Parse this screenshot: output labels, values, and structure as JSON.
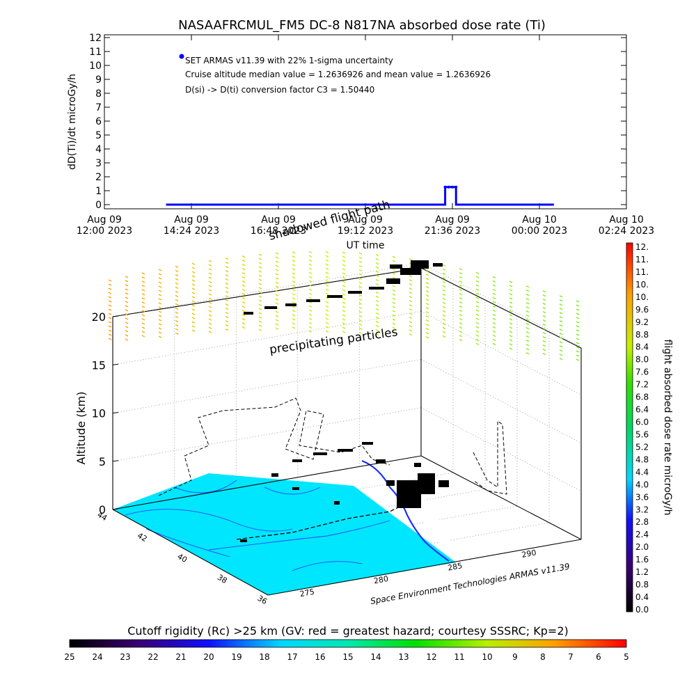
{
  "chart_data": [
    {
      "type": "line",
      "title": "NASAAFRCMUL_FM5 DC-8   N817NA absorbed dose rate (Ti)",
      "ylabel": "dD(Ti)/dt microGy/h",
      "xlabel": "UT time",
      "ylim": [
        0,
        12
      ],
      "yticks": [
        "0",
        "1",
        "2",
        "3",
        "4",
        "5",
        "6",
        "7",
        "8",
        "9",
        "10",
        "11",
        "12"
      ],
      "xticks": [
        {
          "line1": "Aug 09",
          "line2": "12:00 2023"
        },
        {
          "line1": "Aug 09",
          "line2": "14:24 2023"
        },
        {
          "line1": "Aug 09",
          "line2": "16:48 2023"
        },
        {
          "line1": "Aug 09",
          "line2": "19:12 2023"
        },
        {
          "line1": "Aug 09",
          "line2": "21:36 2023"
        },
        {
          "line1": "Aug 10",
          "line2": "00:00 2023"
        },
        {
          "line1": "Aug 10",
          "line2": "02:24 2023"
        }
      ],
      "xlim_hours": [
        0,
        14.4
      ],
      "series": [
        {
          "name": "SET ARMAS v11.39 with 22% 1-sigma uncertainty",
          "color": "#0000ff",
          "x_hours": [
            1.7,
            9.4,
            9.4,
            9.5,
            9.6,
            9.7,
            9.7,
            12.4
          ],
          "values": [
            0,
            0,
            1.26,
            1.26,
            1.26,
            1.26,
            0,
            0
          ]
        }
      ],
      "annotations": [
        "SET ARMAS v11.39 with 22% 1-sigma uncertainty",
        "Cruise altitude median value = 1.2636926 and mean value = 1.2636926",
        "D(si) -> D(ti) conversion factor C3 = 1.50440"
      ]
    },
    {
      "type": "scatter",
      "ylabel": "Altitude (km)",
      "zticks": [
        "0",
        "5",
        "10",
        "15",
        "20"
      ],
      "lat_ticks": [
        "44",
        "42",
        "40",
        "38",
        "36"
      ],
      "lon_ticks": [
        "275",
        "280",
        "285",
        "290"
      ],
      "labels": {
        "precipitating": "precipitating particles",
        "shadow": "shadowed flight path",
        "credit": "Space Environment Technologies ARMAS v11.39"
      },
      "colorbar": {
        "label": "flight absorbed dose rate microGy/h",
        "ticks": [
          "12.",
          "11.",
          "11.",
          "10.",
          "10.",
          "9.6",
          "9.2",
          "8.8",
          "8.4",
          "8.0",
          "7.6",
          "7.2",
          "6.8",
          "6.4",
          "6.0",
          "5.6",
          "5.2",
          "4.8",
          "4.4",
          "4.0",
          "3.6",
          "3.2",
          "2.8",
          "2.4",
          "2.0",
          "1.6",
          "1.2",
          "0.8",
          "0.4",
          "0.0"
        ]
      },
      "rigidity_bar": {
        "title": "Cutoff rigidity (Rc) >25 km (GV: red = greatest hazard; courtesy SSSRC; Kp=2)",
        "ticks": [
          "25",
          "24",
          "23",
          "22",
          "21",
          "20",
          "19",
          "18",
          "17",
          "16",
          "15",
          "14",
          "13",
          "12",
          "11",
          "10",
          "9",
          "8",
          "7",
          "6",
          "5"
        ]
      }
    }
  ]
}
